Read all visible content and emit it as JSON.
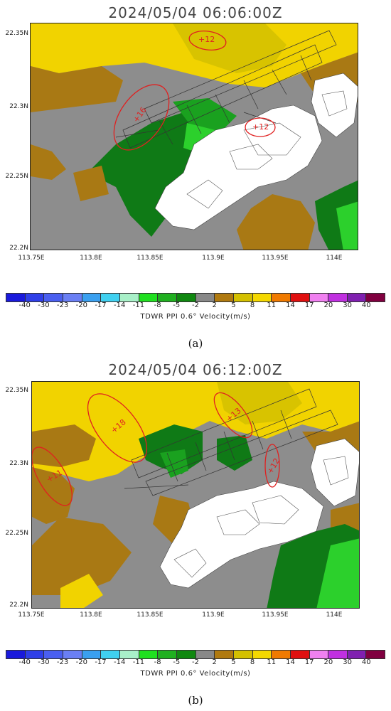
{
  "panels": [
    {
      "title": "2024/05/04  06:06:00Z",
      "sublabel": "(a)",
      "annotations": [
        {
          "text": "+12"
        },
        {
          "text": "+16"
        },
        {
          "text": "+12"
        }
      ]
    },
    {
      "title": "2024/05/04  06:12:00Z",
      "sublabel": "(b)",
      "annotations": [
        {
          "text": "+18"
        },
        {
          "text": "+13"
        },
        {
          "text": "+11"
        },
        {
          "text": "+12"
        }
      ]
    }
  ],
  "axes": {
    "y_ticks": [
      "22.35N",
      "22.3N",
      "22.25N",
      "22.2N"
    ],
    "x_ticks": [
      "113.75E",
      "113.8E",
      "113.85E",
      "113.9E",
      "113.95E",
      "114E"
    ]
  },
  "colorbar": {
    "caption": "TDWR PPI 0.6° Velocity(m/s)",
    "ticks": [
      "-40",
      "-30",
      "-23",
      "-20",
      "-17",
      "-14",
      "-11",
      "-8",
      "-5",
      "-2",
      "2",
      "5",
      "8",
      "11",
      "14",
      "17",
      "20",
      "30",
      "40"
    ],
    "colors": [
      "#1a1adc",
      "#2f3fe8",
      "#4a5ff0",
      "#6a7ff4",
      "#3aa0f0",
      "#40d0f0",
      "#a8f0c8",
      "#20e020",
      "#20b020",
      "#108810",
      "#888888",
      "#b07a10",
      "#d4c000",
      "#f4d800",
      "#f07a00",
      "#e01010",
      "#f080f0",
      "#c030e0",
      "#8020b0",
      "#800040"
    ]
  },
  "palette": {
    "yellow": "#f1d300",
    "olive_yellow": "#d8c300",
    "brown": "#a97914",
    "gray": "#8d8d8d",
    "dark_green": "#0f7a16",
    "green": "#1aa11f",
    "light_green": "#2cd02c",
    "annotation": "#e02020"
  }
}
